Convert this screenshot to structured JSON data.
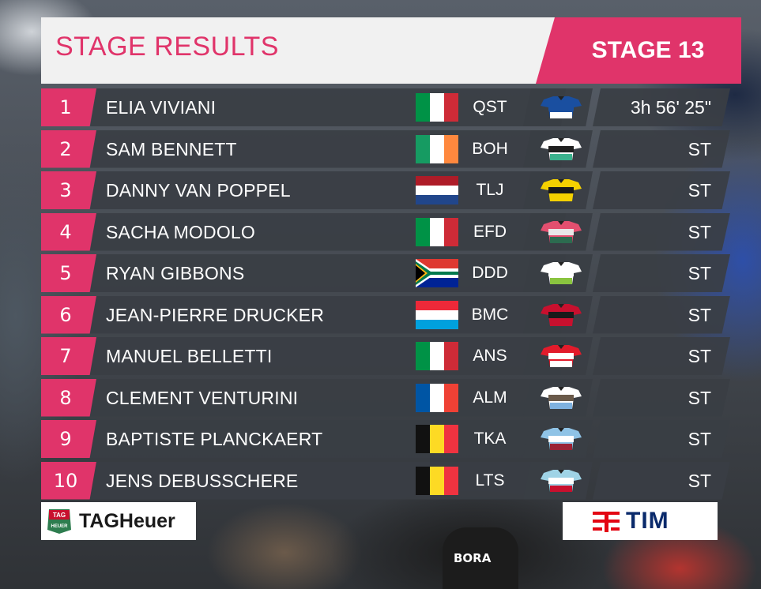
{
  "header": {
    "title": "STAGE RESULTS",
    "stage": "STAGE 13"
  },
  "colors": {
    "accent": "#e0346a",
    "row_bg": "#3a3e44",
    "header_bg": "#f1f1f1",
    "text": "#ffffff"
  },
  "results": [
    {
      "rank": "1",
      "name": "ELIA VIVIANI",
      "flag": "italy-flag",
      "team": "QST",
      "jersey": "quickstep-jersey-icon",
      "time": "3h 56' 25\""
    },
    {
      "rank": "2",
      "name": "SAM BENNETT",
      "flag": "ireland-flag",
      "team": "BOH",
      "jersey": "bora-jersey-icon",
      "time": "ST"
    },
    {
      "rank": "3",
      "name": "DANNY VAN POPPEL",
      "flag": "netherlands-flag",
      "team": "TLJ",
      "jersey": "lottojumbo-jersey-icon",
      "time": "ST"
    },
    {
      "rank": "4",
      "name": "SACHA MODOLO",
      "flag": "italy-flag",
      "team": "EFD",
      "jersey": "ef-jersey-icon",
      "time": "ST"
    },
    {
      "rank": "5",
      "name": "RYAN GIBBONS",
      "flag": "south-africa-flag",
      "team": "DDD",
      "jersey": "dimension-data-jersey-icon",
      "time": "ST"
    },
    {
      "rank": "6",
      "name": "JEAN-PIERRE DRUCKER",
      "flag": "luxembourg-flag",
      "team": "BMC",
      "jersey": "bmc-jersey-icon",
      "time": "ST"
    },
    {
      "rank": "7",
      "name": "MANUEL BELLETTI",
      "flag": "italy-flag",
      "team": "ANS",
      "jersey": "androni-jersey-icon",
      "time": "ST"
    },
    {
      "rank": "8",
      "name": "CLEMENT VENTURINI",
      "flag": "france-flag",
      "team": "ALM",
      "jersey": "ag2r-jersey-icon",
      "time": "ST"
    },
    {
      "rank": "9",
      "name": "BAPTISTE PLANCKAERT",
      "flag": "belgium-flag",
      "team": "TKA",
      "jersey": "katusha-jersey-icon",
      "time": "ST"
    },
    {
      "rank": "10",
      "name": "JENS DEBUSSCHERE",
      "flag": "belgium-flag",
      "team": "LTS",
      "jersey": "lotto-soudal-jersey-icon",
      "time": "ST"
    }
  ],
  "sponsors": {
    "left": "TAGHeuer",
    "left_badge_top": "TAG",
    "left_badge_bottom": "HEUER",
    "right": "TIM"
  },
  "background": {
    "jersey_text": "BORA"
  }
}
